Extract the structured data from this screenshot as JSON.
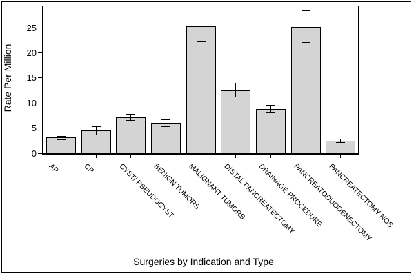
{
  "window": {
    "background": "#ffffff",
    "border_color": "#000000"
  },
  "chart_data": {
    "type": "bar",
    "title": "",
    "xlabel": "Surgeries by Indication and Type",
    "ylabel": "Rate Per Million",
    "ylim": [
      0,
      29.3
    ],
    "yticks": [
      0,
      5,
      10,
      15,
      20,
      25
    ],
    "grid": false,
    "legend": null,
    "bar_fill": "#d4d4d4",
    "bar_border": "#000000",
    "error_bar_color": "#000000",
    "categories": [
      "AP",
      "CP",
      "CYST/ PSEUDOCYST",
      "BENIGN TUMORS",
      "MALIGNANT TUMORS",
      "DISTAL PANCREATECTOMY",
      "DRAINAGE PROCEDURE",
      "PANCREATODUODENECTOMY",
      "PANCREATECTOMY NOS"
    ],
    "values": [
      3.1,
      4.5,
      7.2,
      6.1,
      25.3,
      12.5,
      8.8,
      25.2,
      2.5
    ],
    "error_low": [
      2.7,
      3.7,
      6.6,
      5.4,
      22.3,
      11.3,
      8.1,
      22.1,
      2.2
    ],
    "error_high": [
      3.5,
      5.3,
      7.9,
      6.8,
      28.6,
      14.0,
      9.6,
      28.5,
      2.9
    ]
  }
}
